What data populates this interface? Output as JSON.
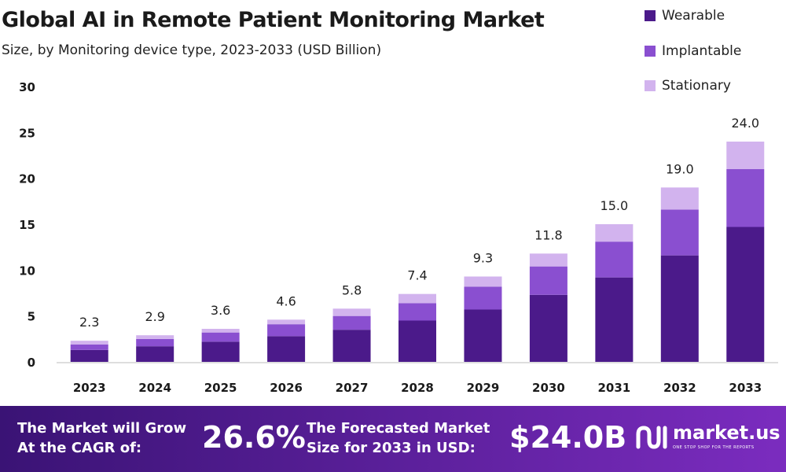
{
  "header": {
    "title": "Global AI in Remote Patient Monitoring Market",
    "subtitle": "Size, by Monitoring device type, 2023-2033 (USD Billion)"
  },
  "colors": {
    "wearable": "#4b1a8a",
    "implantable": "#8a4fd0",
    "stationary": "#d2b3ee",
    "footer_start": "#3a1375",
    "footer_end": "#7b2cbf"
  },
  "chart_data": {
    "type": "bar",
    "stacked": true,
    "categories": [
      "2023",
      "2024",
      "2025",
      "2026",
      "2027",
      "2028",
      "2029",
      "2030",
      "2031",
      "2032",
      "2033"
    ],
    "series": [
      {
        "name": "Wearable",
        "values": [
          1.3,
          1.7,
          2.2,
          2.8,
          3.5,
          4.5,
          5.7,
          7.3,
          9.2,
          11.6,
          14.7
        ]
      },
      {
        "name": "Implantable",
        "values": [
          0.6,
          0.8,
          1.0,
          1.3,
          1.5,
          1.9,
          2.5,
          3.1,
          3.9,
          5.0,
          6.3
        ]
      },
      {
        "name": "Stationary",
        "values": [
          0.4,
          0.4,
          0.4,
          0.5,
          0.8,
          1.0,
          1.1,
          1.4,
          1.9,
          2.4,
          3.0
        ]
      }
    ],
    "totals_labels": [
      "2.3",
      "2.9",
      "3.6",
      "4.6",
      "5.8",
      "7.4",
      "9.3",
      "11.8",
      "15.0",
      "19.0",
      "24.0"
    ],
    "y_ticks": [
      "0",
      "5",
      "10",
      "15",
      "20",
      "25",
      "30"
    ],
    "ylim": [
      0,
      30
    ],
    "grid": false,
    "legend_position": "top-right"
  },
  "footer": {
    "cagr_line1": "The Market will Grow",
    "cagr_line2": "At the CAGR of:",
    "cagr_value": "26.6%",
    "forecast_line1": "The Forecasted Market",
    "forecast_line2": "Size for 2033 in USD:",
    "forecast_value": "$24.0B",
    "brand_name": "market.us",
    "brand_tagline": "ONE STOP SHOP FOR THE REPORTS"
  }
}
